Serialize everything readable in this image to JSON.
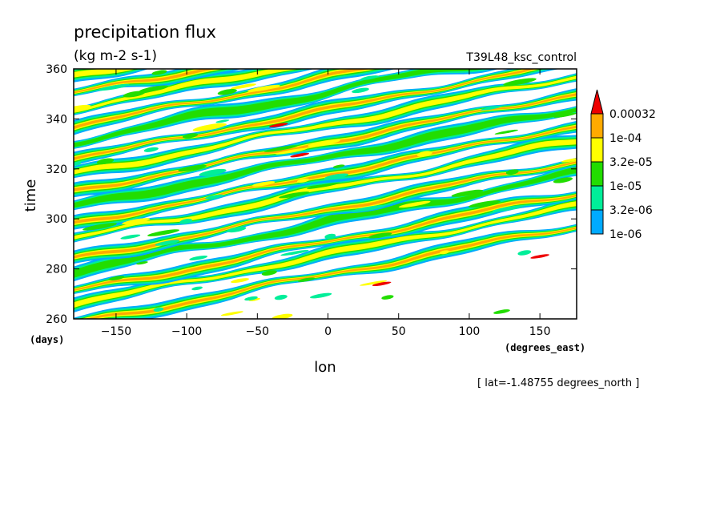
{
  "chart_data": {
    "type": "heatmap",
    "title": "precipitation flux",
    "units": "(kg m-2 s-1)",
    "run_label": "T39L48_ksc_control",
    "xlabel": "lon",
    "ylabel": "time",
    "x_units": "(degrees_east)",
    "y_units": "(days)",
    "subtitle_note": "[ lat=-1.48755 degrees_north ]",
    "xlim": [
      -180,
      176
    ],
    "ylim": [
      260,
      360
    ],
    "xticks": [
      -150,
      -100,
      -50,
      0,
      50,
      100,
      150
    ],
    "yticks": [
      260,
      280,
      300,
      320,
      340,
      360
    ],
    "grid": false,
    "legend_position": "right",
    "colorbar": {
      "levels": [
        "1e-06",
        "3.2e-06",
        "1e-05",
        "3.2e-05",
        "1e-04",
        "0.00032"
      ],
      "colors": [
        "#00aaff",
        "#00ee99",
        "#22dd00",
        "#ffff00",
        "#ffaa00",
        "#ee0000"
      ],
      "extend": "max"
    },
    "pattern": {
      "description_free": true,
      "band_slope_days_per_degree": 0.11,
      "bands": [
        {
          "t0": 258,
          "level": 4
        },
        {
          "t0": 266,
          "level": 3
        },
        {
          "t0": 271,
          "level": 4
        },
        {
          "t0": 279,
          "level": 2
        },
        {
          "t0": 284,
          "level": 4
        },
        {
          "t0": 292,
          "level": 3
        },
        {
          "t0": 298,
          "level": 4
        },
        {
          "t0": 305,
          "level": 2
        },
        {
          "t0": 311,
          "level": 4
        },
        {
          "t0": 318,
          "level": 3
        },
        {
          "t0": 324,
          "level": 4
        },
        {
          "t0": 331,
          "level": 2
        },
        {
          "t0": 337,
          "level": 4
        },
        {
          "t0": 344,
          "level": 3
        },
        {
          "t0": 350,
          "level": 4
        },
        {
          "t0": 357,
          "level": 3
        }
      ],
      "peaks": [
        {
          "lon": -35,
          "time": 337.5
        },
        {
          "lon": -20,
          "time": 325.5
        },
        {
          "lon": 38,
          "time": 274
        },
        {
          "lon": 150,
          "time": 285
        }
      ]
    }
  }
}
